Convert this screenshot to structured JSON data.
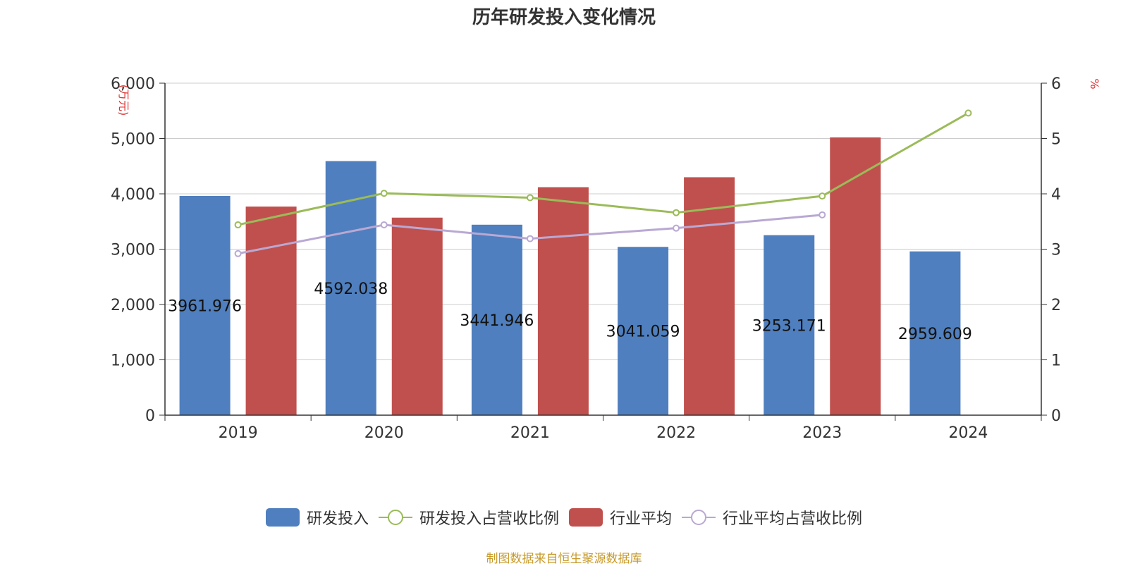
{
  "title": "历年研发投入变化情况",
  "source_note": "制图数据来自恒生聚源数据库",
  "colors": {
    "rd_bar": "#4f7fbe",
    "industry_bar": "#c0504d",
    "rd_ratio_line": "#9bbb59",
    "industry_ratio_line": "#b9a8d3",
    "axis_unit": "#e03030",
    "grid": "#cccccc",
    "axis": "#333333",
    "source": "#c79a2b"
  },
  "legend": [
    {
      "label": "研发投入",
      "kind": "bar",
      "series": "rd"
    },
    {
      "label": "研发投入占营收比例",
      "kind": "line",
      "series": "rd_ratio"
    },
    {
      "label": "行业平均",
      "kind": "bar",
      "series": "industry"
    },
    {
      "label": "行业平均占营收比例",
      "kind": "line",
      "series": "industry_ratio"
    }
  ],
  "chart_data": {
    "type": "bar",
    "categories": [
      "2019",
      "2020",
      "2021",
      "2022",
      "2023",
      "2024"
    ],
    "ylabel_left": "(万元)",
    "ylabel_right": "%",
    "ylim_left": [
      0,
      6000
    ],
    "yticks_left": [
      "0",
      "1,000",
      "2,000",
      "3,000",
      "4,000",
      "5,000",
      "6,000"
    ],
    "ylim_right": [
      0,
      6
    ],
    "yticks_right": [
      "0",
      "1",
      "2",
      "3",
      "4",
      "5",
      "6"
    ],
    "grid": true,
    "legend_position": "bottom",
    "series": [
      {
        "name": "研发投入",
        "type": "bar",
        "axis": "left",
        "values": [
          3961.976,
          4592.038,
          3441.946,
          3041.059,
          3253.171,
          2959.609
        ],
        "data_labels": [
          "3961.976",
          "4592.038",
          "3441.946",
          "3041.059",
          "3253.171",
          "2959.609"
        ]
      },
      {
        "name": "行业平均",
        "type": "bar",
        "axis": "left",
        "values": [
          3770,
          3570,
          4120,
          4300,
          5020,
          null
        ]
      },
      {
        "name": "研发投入占营收比例",
        "type": "line",
        "axis": "right",
        "values": [
          3.44,
          4.01,
          3.93,
          3.66,
          3.96,
          5.46
        ]
      },
      {
        "name": "行业平均占营收比例",
        "type": "line",
        "axis": "right",
        "values": [
          2.92,
          3.44,
          3.19,
          3.38,
          3.62,
          null
        ]
      }
    ]
  }
}
